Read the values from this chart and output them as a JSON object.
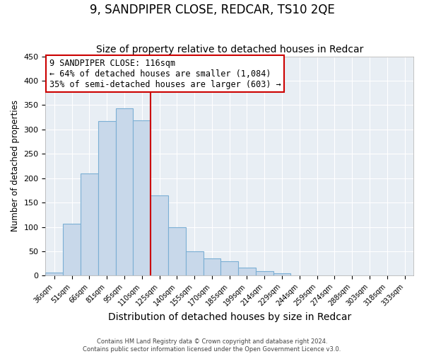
{
  "title": "9, SANDPIPER CLOSE, REDCAR, TS10 2QE",
  "subtitle": "Size of property relative to detached houses in Redcar",
  "xlabel": "Distribution of detached houses by size in Redcar",
  "ylabel": "Number of detached properties",
  "bar_labels": [
    "36sqm",
    "51sqm",
    "66sqm",
    "81sqm",
    "95sqm",
    "110sqm",
    "125sqm",
    "140sqm",
    "155sqm",
    "170sqm",
    "185sqm",
    "199sqm",
    "214sqm",
    "229sqm",
    "244sqm",
    "259sqm",
    "274sqm",
    "288sqm",
    "303sqm",
    "318sqm",
    "333sqm"
  ],
  "bar_heights": [
    7,
    106,
    210,
    317,
    343,
    318,
    165,
    99,
    50,
    35,
    30,
    17,
    9,
    5,
    0,
    0,
    0,
    0,
    0,
    0,
    0
  ],
  "bar_color": "#c8d8ea",
  "bar_edge_color": "#7bafd4",
  "vline_x": 5.5,
  "vline_color": "#cc0000",
  "ylim": [
    0,
    450
  ],
  "yticks": [
    0,
    50,
    100,
    150,
    200,
    250,
    300,
    350,
    400,
    450
  ],
  "annotation_title": "9 SANDPIPER CLOSE: 116sqm",
  "annotation_line1": "← 64% of detached houses are smaller (1,084)",
  "annotation_line2": "35% of semi-detached houses are larger (603) →",
  "annotation_box_color": "#ffffff",
  "annotation_box_edge": "#cc0000",
  "footer1": "Contains HM Land Registry data © Crown copyright and database right 2024.",
  "footer2": "Contains public sector information licensed under the Open Government Licence v3.0.",
  "bg_color": "#ffffff",
  "plot_bg_color": "#e8eef4",
  "grid_color": "#ffffff",
  "title_fontsize": 12,
  "subtitle_fontsize": 10,
  "xlabel_fontsize": 10,
  "ylabel_fontsize": 8.5,
  "annotation_fontsize": 8.5
}
